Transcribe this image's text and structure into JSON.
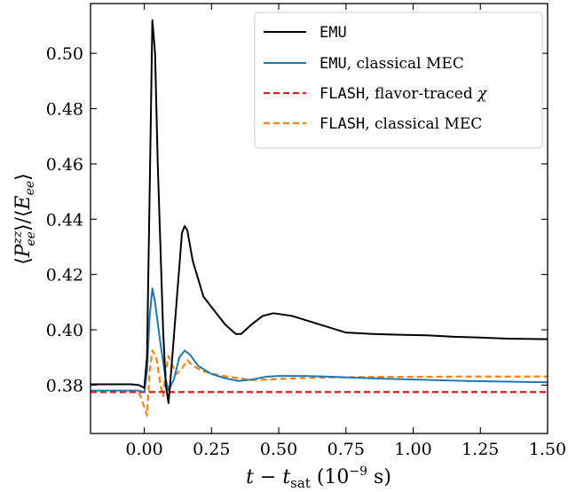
{
  "chart_data": {
    "type": "line",
    "title": "",
    "xlabel": "t − t_sat (10⁻⁹ s)",
    "ylabel": "⟨P_ee^zz⟩/⟨E_ee⟩",
    "xlim": [
      -0.2,
      1.5
    ],
    "ylim": [
      0.3625,
      0.518
    ],
    "x_ticks": [
      0.0,
      0.25,
      0.5,
      0.75,
      1.0,
      1.25,
      1.5
    ],
    "x_tick_labels": [
      "0.00",
      "0.25",
      "0.50",
      "0.75",
      "1.00",
      "1.25",
      "1.50"
    ],
    "y_ticks": [
      0.38,
      0.4,
      0.42,
      0.44,
      0.46,
      0.48,
      0.5
    ],
    "y_tick_labels": [
      "0.38",
      "0.40",
      "0.42",
      "0.44",
      "0.46",
      "0.48",
      "0.50"
    ],
    "grid": false,
    "legend_position": "top-right",
    "series": [
      {
        "name": "EMU",
        "color": "#000000",
        "dash": "solid",
        "points": [
          [
            -0.2,
            0.3803
          ],
          [
            -0.05,
            0.3803
          ],
          [
            -0.02,
            0.38
          ],
          [
            0.0,
            0.379
          ],
          [
            0.01,
            0.39
          ],
          [
            0.02,
            0.45
          ],
          [
            0.03,
            0.512
          ],
          [
            0.04,
            0.5
          ],
          [
            0.05,
            0.46
          ],
          [
            0.06,
            0.43
          ],
          [
            0.07,
            0.4
          ],
          [
            0.08,
            0.38
          ],
          [
            0.09,
            0.3735
          ],
          [
            0.1,
            0.385
          ],
          [
            0.12,
            0.41
          ],
          [
            0.14,
            0.435
          ],
          [
            0.15,
            0.4375
          ],
          [
            0.16,
            0.436
          ],
          [
            0.18,
            0.425
          ],
          [
            0.22,
            0.412
          ],
          [
            0.26,
            0.407
          ],
          [
            0.3,
            0.402
          ],
          [
            0.34,
            0.3985
          ],
          [
            0.36,
            0.3985
          ],
          [
            0.4,
            0.402
          ],
          [
            0.44,
            0.405
          ],
          [
            0.48,
            0.406
          ],
          [
            0.55,
            0.405
          ],
          [
            0.65,
            0.402
          ],
          [
            0.75,
            0.399
          ],
          [
            0.85,
            0.3985
          ],
          [
            0.95,
            0.3982
          ],
          [
            1.05,
            0.398
          ],
          [
            1.15,
            0.3975
          ],
          [
            1.25,
            0.3972
          ],
          [
            1.35,
            0.3968
          ],
          [
            1.5,
            0.3966
          ]
        ]
      },
      {
        "name": "EMU, classical MEC",
        "color": "#1f77b4",
        "dash": "solid",
        "points": [
          [
            -0.2,
            0.378
          ],
          [
            -0.02,
            0.378
          ],
          [
            0.0,
            0.3775
          ],
          [
            0.01,
            0.385
          ],
          [
            0.02,
            0.405
          ],
          [
            0.03,
            0.415
          ],
          [
            0.04,
            0.41
          ],
          [
            0.06,
            0.395
          ],
          [
            0.08,
            0.382
          ],
          [
            0.09,
            0.378
          ],
          [
            0.11,
            0.382
          ],
          [
            0.13,
            0.39
          ],
          [
            0.15,
            0.3925
          ],
          [
            0.17,
            0.391
          ],
          [
            0.2,
            0.387
          ],
          [
            0.25,
            0.384
          ],
          [
            0.3,
            0.3825
          ],
          [
            0.35,
            0.3815
          ],
          [
            0.4,
            0.382
          ],
          [
            0.45,
            0.383
          ],
          [
            0.5,
            0.3833
          ],
          [
            0.6,
            0.3833
          ],
          [
            0.7,
            0.383
          ],
          [
            0.8,
            0.3826
          ],
          [
            0.9,
            0.3823
          ],
          [
            1.0,
            0.382
          ],
          [
            1.2,
            0.3815
          ],
          [
            1.5,
            0.381
          ]
        ]
      },
      {
        "name": "FLASH, flavor-traced χ",
        "color": "#e41a1c",
        "dash": "dashed",
        "points": [
          [
            -0.2,
            0.3775
          ],
          [
            1.5,
            0.3775
          ]
        ]
      },
      {
        "name": "FLASH, classical MEC",
        "color": "#ff7f0e",
        "dash": "dashed",
        "points": [
          [
            -0.2,
            0.3775
          ],
          [
            -0.02,
            0.3775
          ],
          [
            0.0,
            0.372
          ],
          [
            0.01,
            0.369
          ],
          [
            0.02,
            0.385
          ],
          [
            0.03,
            0.3925
          ],
          [
            0.045,
            0.39
          ],
          [
            0.06,
            0.38
          ],
          [
            0.07,
            0.376
          ],
          [
            0.08,
            0.385
          ],
          [
            0.09,
            0.3905
          ],
          [
            0.1,
            0.388
          ],
          [
            0.12,
            0.384
          ],
          [
            0.14,
            0.386
          ],
          [
            0.16,
            0.389
          ],
          [
            0.18,
            0.387
          ],
          [
            0.22,
            0.385
          ],
          [
            0.28,
            0.3835
          ],
          [
            0.35,
            0.3825
          ],
          [
            0.4,
            0.3818
          ],
          [
            0.5,
            0.3822
          ],
          [
            0.6,
            0.3826
          ],
          [
            0.7,
            0.3828
          ],
          [
            0.8,
            0.3829
          ],
          [
            0.9,
            0.383
          ],
          [
            1.0,
            0.383
          ],
          [
            1.2,
            0.3831
          ],
          [
            1.5,
            0.3831
          ]
        ]
      }
    ]
  }
}
